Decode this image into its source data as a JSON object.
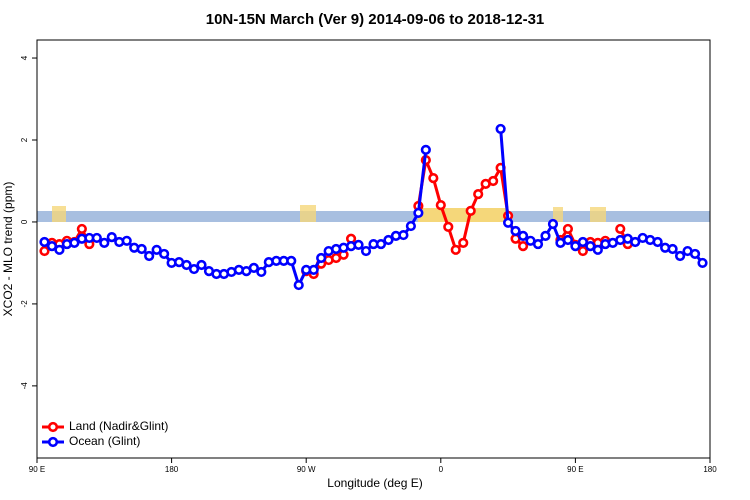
{
  "chart_data": {
    "type": "line",
    "title": "10N-15N March (Ver 9)   2014-09-06 to 2018-12-31",
    "x_label": "Longitude (deg E)",
    "y_label": "XCO2 - MLO trend (ppm)",
    "xlim": [
      90,
      540
    ],
    "ylim": [
      -5.76,
      4.44
    ],
    "xticks": [
      {
        "value": 90,
        "label": "90 E"
      },
      180,
      {
        "value": 270,
        "label": "90 W"
      },
      {
        "value": 360,
        "label": "0"
      },
      {
        "value": 450,
        "label": "90 E"
      },
      {
        "value": 540,
        "label": "180"
      }
    ],
    "yticks": [
      -4,
      -2,
      0,
      2,
      4
    ],
    "legend": "bottom-left",
    "x": [
      95,
      100,
      105,
      110,
      115,
      120,
      125,
      130,
      135,
      140,
      145,
      150,
      155,
      160,
      165,
      170,
      175,
      180,
      185,
      190,
      195,
      200,
      205,
      210,
      215,
      220,
      225,
      230,
      235,
      240,
      245,
      250,
      255,
      260,
      265,
      270,
      275,
      280,
      285,
      290,
      295,
      300,
      305,
      310,
      315,
      320,
      325,
      330,
      335,
      340,
      345,
      350,
      355,
      360,
      365,
      370,
      375,
      380,
      385,
      390,
      395,
      400,
      405,
      410,
      415,
      420,
      425,
      430,
      435,
      440,
      445,
      450,
      455,
      460,
      465,
      470,
      475,
      480,
      485,
      490,
      495,
      500,
      505,
      510,
      515,
      520,
      525,
      530,
      535
    ],
    "series": [
      {
        "name": "Land (Nadir&Glint)",
        "color": "#ff0000",
        "values": [
          -0.71,
          -0.51,
          -0.54,
          -0.46,
          -0.49,
          -0.17,
          -0.54,
          null,
          null,
          null,
          null,
          null,
          null,
          null,
          null,
          null,
          null,
          null,
          null,
          null,
          null,
          null,
          null,
          null,
          null,
          null,
          null,
          null,
          null,
          null,
          null,
          null,
          null,
          null,
          null,
          -1.2,
          -1.27,
          -1.02,
          -0.93,
          -0.88,
          -0.8,
          -0.41,
          null,
          null,
          null,
          null,
          null,
          null,
          null,
          null,
          0.39,
          1.51,
          1.07,
          0.41,
          -0.12,
          -0.68,
          -0.51,
          0.27,
          0.68,
          0.93,
          1.0,
          1.32,
          0.15,
          -0.41,
          -0.59,
          null,
          null,
          null,
          null,
          -0.44,
          -0.17,
          -0.56,
          -0.71,
          -0.49,
          -0.51,
          -0.46,
          null,
          -0.17,
          -0.54,
          null,
          null,
          null,
          null,
          null,
          null,
          null,
          null,
          null,
          null
        ]
      },
      {
        "name": "Ocean (Glint)",
        "color": "#0000ff",
        "values": [
          -0.49,
          -0.59,
          -0.68,
          -0.54,
          -0.51,
          -0.41,
          -0.39,
          -0.39,
          -0.51,
          -0.37,
          -0.49,
          -0.46,
          -0.63,
          -0.66,
          -0.83,
          -0.68,
          -0.78,
          -1.0,
          -0.98,
          -1.05,
          -1.15,
          -1.05,
          -1.2,
          -1.27,
          -1.27,
          -1.22,
          -1.17,
          -1.2,
          -1.12,
          -1.22,
          -0.98,
          -0.95,
          -0.95,
          -0.95,
          -1.54,
          -1.17,
          -1.17,
          -0.88,
          -0.71,
          -0.66,
          -0.63,
          -0.59,
          -0.56,
          -0.71,
          -0.54,
          -0.54,
          -0.44,
          -0.34,
          -0.32,
          -0.1,
          0.22,
          1.76,
          null,
          null,
          null,
          null,
          null,
          null,
          null,
          null,
          null,
          2.27,
          -0.02,
          -0.22,
          -0.34,
          -0.46,
          -0.54,
          -0.34,
          -0.05,
          -0.51,
          -0.44,
          -0.59,
          -0.49,
          -0.59,
          -0.68,
          -0.54,
          -0.51,
          -0.44,
          -0.41,
          -0.49,
          -0.39,
          -0.44,
          -0.49,
          -0.63,
          -0.66,
          -0.83,
          -0.71,
          -0.78,
          -1.0
        ]
      }
    ]
  }
}
